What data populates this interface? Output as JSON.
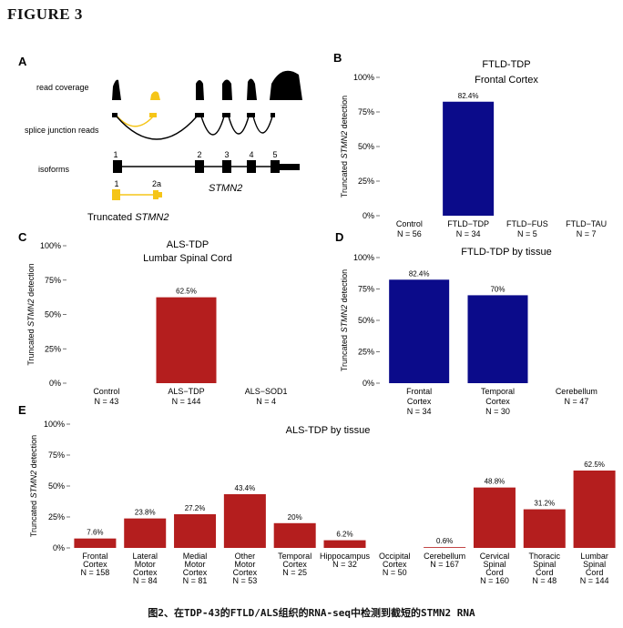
{
  "figure_title": "FIGURE 3",
  "caption": "图2、在TDP-43的FTLD/ALS组织的RNA-seq中检测到截短的STMN2 RNA",
  "panel_a": {
    "letter": "A",
    "row_labels": [
      "read coverage",
      "splice junction reads",
      "isoforms"
    ],
    "exon_labels": [
      "1",
      "2",
      "3",
      "4",
      "5"
    ],
    "gene_label": "STMN2",
    "truncated_exon_labels": [
      "1",
      "2a"
    ],
    "truncated_label_prefix": "Truncated ",
    "truncated_label_gene": "STMN2",
    "colors": {
      "main": "#000000",
      "truncated": "#f5c518"
    }
  },
  "colors": {
    "ftld": "#0b0b8a",
    "als": "#b41e1e"
  },
  "chart_data": [
    {
      "id": "B",
      "type": "bar",
      "title": [
        "FTLD-TDP",
        "Frontal Cortex"
      ],
      "ylabel_prefix": "Truncated ",
      "ylabel_gene": "STMN2",
      "ylabel_suffix": " detection",
      "yticks": [
        "0%",
        "25%",
        "50%",
        "75%",
        "100%"
      ],
      "ylim": [
        0,
        100
      ],
      "categories": [
        [
          "Control",
          "N = 56"
        ],
        [
          "FTLD−TDP",
          "N = 34"
        ],
        [
          "FTLD−FUS",
          "N = 5"
        ],
        [
          "FTLD−TAU",
          "N = 7"
        ]
      ],
      "values": [
        0,
        82.4,
        0,
        0
      ],
      "labels": [
        "",
        "82.4%",
        "",
        ""
      ],
      "color": "#0b0b8a"
    },
    {
      "id": "C",
      "type": "bar",
      "title": [
        "ALS-TDP",
        "Lumbar Spinal Cord"
      ],
      "ylabel_prefix": "Truncated ",
      "ylabel_gene": "STMN2",
      "ylabel_suffix": " detection",
      "yticks": [
        "0%",
        "25%",
        "50%",
        "75%",
        "100%"
      ],
      "ylim": [
        0,
        100
      ],
      "categories": [
        [
          "Control",
          "N = 43"
        ],
        [
          "ALS−TDP",
          "N = 144"
        ],
        [
          "ALS−SOD1",
          "N = 4"
        ]
      ],
      "values": [
        0,
        62.5,
        0
      ],
      "labels": [
        "",
        "62.5%",
        ""
      ],
      "color": "#b41e1e"
    },
    {
      "id": "D",
      "type": "bar",
      "title": [
        "FTLD-TDP by tissue"
      ],
      "ylabel_prefix": "Truncated ",
      "ylabel_gene": "STMN2",
      "ylabel_suffix": " detection",
      "yticks": [
        "0%",
        "25%",
        "50%",
        "75%",
        "100%"
      ],
      "ylim": [
        0,
        100
      ],
      "categories": [
        [
          "Frontal",
          "Cortex",
          "N = 34"
        ],
        [
          "Temporal",
          "Cortex",
          "N = 30"
        ],
        [
          "Cerebellum",
          "N = 47"
        ]
      ],
      "values": [
        82.4,
        70,
        0
      ],
      "labels": [
        "82.4%",
        "70%",
        ""
      ],
      "color": "#0b0b8a"
    },
    {
      "id": "E",
      "type": "bar",
      "title": [
        "ALS-TDP by tissue"
      ],
      "ylabel_prefix": "Truncated ",
      "ylabel_gene": "STMN2",
      "ylabel_suffix": " detection",
      "yticks": [
        "0%",
        "25%",
        "50%",
        "75%",
        "100%"
      ],
      "ylim": [
        0,
        100
      ],
      "categories": [
        [
          "Frontal",
          "Cortex",
          "N = 158"
        ],
        [
          "Lateral",
          "Motor",
          "Cortex",
          "N = 84"
        ],
        [
          "Medial",
          "Motor",
          "Cortex",
          "N = 81"
        ],
        [
          "Other",
          "Motor",
          "Cortex",
          "N = 53"
        ],
        [
          "Temporal",
          "Cortex",
          "N = 25"
        ],
        [
          "Hippocampus",
          "N = 32"
        ],
        [
          "Occipital",
          "Cortex",
          "N = 50"
        ],
        [
          "Cerebellum",
          "N = 167"
        ],
        [
          "Cervical",
          "Spinal",
          "Cord",
          "N = 160"
        ],
        [
          "Thoracic",
          "Spinal",
          "Cord",
          "N = 48"
        ],
        [
          "Lumbar",
          "Spinal",
          "Cord",
          "N = 144"
        ]
      ],
      "values": [
        7.6,
        23.8,
        27.2,
        43.4,
        20,
        6.2,
        0,
        0.6,
        48.8,
        31.2,
        62.5
      ],
      "labels": [
        "7.6%",
        "23.8%",
        "27.2%",
        "43.4%",
        "20%",
        "6.2%",
        "",
        "0.6%",
        "48.8%",
        "31.2%",
        "62.5%"
      ],
      "color": "#b41e1e"
    }
  ]
}
